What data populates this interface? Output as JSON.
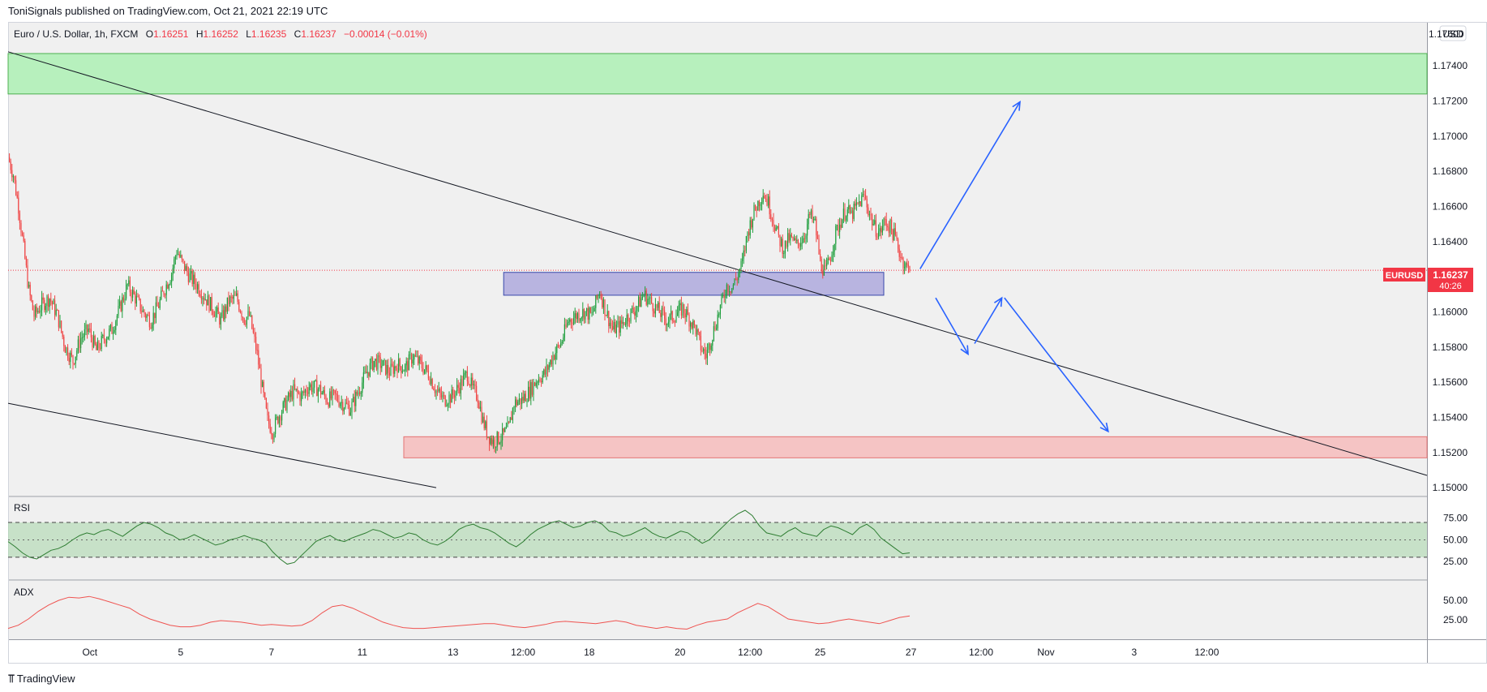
{
  "header": {
    "published": "ToniSignals published on TradingView.com, Oct 21, 2021 22:19 UTC"
  },
  "legend": {
    "symbol": "Euro / U.S. Dollar, 1h, FXCM",
    "open_label": "O",
    "open": "1.16251",
    "high_label": "H",
    "high": "1.16252",
    "low_label": "L",
    "low": "1.16235",
    "close_label": "C",
    "close": "1.16237",
    "change": "−0.00014 (−0.01%)"
  },
  "price_axis": {
    "currency": "USD",
    "ticks": [
      "1.17400",
      "1.17200",
      "1.17000",
      "1.16800",
      "1.16600",
      "1.16400",
      "1.16000",
      "1.15800",
      "1.15600",
      "1.15400",
      "1.15200",
      "1.15000"
    ],
    "top_clipped": "1.17600"
  },
  "price_badge": {
    "symbol": "EURUSD",
    "price": "1.16237",
    "countdown": "40:26"
  },
  "time_axis": {
    "ticks": [
      "Oct",
      "5",
      "7",
      "11",
      "13",
      "12:00",
      "18",
      "20",
      "12:00",
      "25",
      "27",
      "12:00",
      "Nov",
      "3",
      "12:00"
    ]
  },
  "rsi": {
    "label": "RSI",
    "ticks": [
      "75.00",
      "50.00",
      "25.00"
    ]
  },
  "adx": {
    "label": "ADX",
    "ticks": [
      "50.00",
      "25.00"
    ]
  },
  "footer": {
    "brand": "TradingView"
  },
  "colors": {
    "up": "#26a69a",
    "candle_up": "#1e9e3c",
    "candle_down": "#ef4444",
    "supply_zone": "#b7f0bd",
    "demand_zone": "#f5c4c4",
    "pivot_zone": "#b8b4e0",
    "arrow": "#2962ff",
    "badge": "#f23645"
  },
  "chart_data": [
    {
      "type": "candlestick",
      "title": "Euro / U.S. Dollar, 1h, FXCM",
      "ylim": [
        1.1495,
        1.1765
      ],
      "last_price": 1.16237,
      "price_path": [
        [
          0,
          1.1688
        ],
        [
          4,
          1.1678
        ],
        [
          8,
          1.166
        ],
        [
          12,
          1.1636
        ],
        [
          16,
          1.1612
        ],
        [
          20,
          1.1598
        ],
        [
          26,
          1.1604
        ],
        [
          32,
          1.1608
        ],
        [
          38,
          1.1598
        ],
        [
          44,
          1.158
        ],
        [
          50,
          1.1572
        ],
        [
          56,
          1.1585
        ],
        [
          62,
          1.159
        ],
        [
          68,
          1.1578
        ],
        [
          74,
          1.1585
        ],
        [
          80,
          1.159
        ],
        [
          86,
          1.1602
        ],
        [
          92,
          1.1615
        ],
        [
          98,
          1.1608
        ],
        [
          104,
          1.16
        ],
        [
          110,
          1.1595
        ],
        [
          116,
          1.1604
        ],
        [
          120,
          1.1612
        ],
        [
          126,
          1.1622
        ],
        [
          130,
          1.1635
        ],
        [
          134,
          1.1628
        ],
        [
          140,
          1.162
        ],
        [
          146,
          1.1615
        ],
        [
          152,
          1.1608
        ],
        [
          158,
          1.1602
        ],
        [
          164,
          1.1595
        ],
        [
          170,
          1.1606
        ],
        [
          176,
          1.1608
        ],
        [
          182,
          1.1596
        ],
        [
          186,
          1.1598
        ],
        [
          192,
          1.1576
        ],
        [
          196,
          1.1556
        ],
        [
          200,
          1.1538
        ],
        [
          204,
          1.1532
        ],
        [
          208,
          1.154
        ],
        [
          214,
          1.1548
        ],
        [
          220,
          1.1555
        ],
        [
          226,
          1.1552
        ],
        [
          232,
          1.1558
        ],
        [
          240,
          1.1556
        ],
        [
          246,
          1.155
        ],
        [
          252,
          1.1552
        ],
        [
          258,
          1.1548
        ],
        [
          264,
          1.1545
        ],
        [
          270,
          1.1555
        ],
        [
          276,
          1.1565
        ],
        [
          282,
          1.1572
        ],
        [
          288,
          1.157
        ],
        [
          294,
          1.1566
        ],
        [
          300,
          1.157
        ],
        [
          306,
          1.1568
        ],
        [
          312,
          1.1575
        ],
        [
          318,
          1.157
        ],
        [
          324,
          1.1565
        ],
        [
          330,
          1.1555
        ],
        [
          336,
          1.155
        ],
        [
          342,
          1.1552
        ],
        [
          348,
          1.1558
        ],
        [
          354,
          1.1565
        ],
        [
          358,
          1.1556
        ],
        [
          362,
          1.1552
        ],
        [
          366,
          1.1538
        ],
        [
          370,
          1.153
        ],
        [
          374,
          1.1526
        ],
        [
          378,
          1.1528
        ],
        [
          382,
          1.153
        ],
        [
          386,
          1.1534
        ],
        [
          390,
          1.1548
        ],
        [
          396,
          1.155
        ],
        [
          402,
          1.1555
        ],
        [
          408,
          1.1562
        ],
        [
          414,
          1.1565
        ],
        [
          420,
          1.1575
        ],
        [
          426,
          1.1582
        ],
        [
          432,
          1.1595
        ],
        [
          438,
          1.1598
        ],
        [
          444,
          1.16
        ],
        [
          450,
          1.1598
        ],
        [
          456,
          1.1612
        ],
        [
          460,
          1.1602
        ],
        [
          466,
          1.159
        ],
        [
          472,
          1.1592
        ],
        [
          478,
          1.1598
        ],
        [
          484,
          1.1602
        ],
        [
          490,
          1.161
        ],
        [
          496,
          1.1605
        ],
        [
          502,
          1.16
        ],
        [
          508,
          1.1595
        ],
        [
          514,
          1.1598
        ],
        [
          520,
          1.1602
        ],
        [
          526,
          1.1595
        ],
        [
          530,
          1.159
        ],
        [
          534,
          1.158
        ],
        [
          538,
          1.1575
        ],
        [
          542,
          1.1585
        ],
        [
          546,
          1.1595
        ],
        [
          550,
          1.1605
        ],
        [
          554,
          1.1615
        ],
        [
          558,
          1.1614
        ],
        [
          562,
          1.162
        ],
        [
          566,
          1.1628
        ],
        [
          570,
          1.1645
        ],
        [
          574,
          1.1655
        ],
        [
          578,
          1.1662
        ],
        [
          582,
          1.1668
        ],
        [
          586,
          1.1662
        ],
        [
          590,
          1.1652
        ],
        [
          594,
          1.1642
        ],
        [
          598,
          1.1636
        ],
        [
          602,
          1.1642
        ],
        [
          608,
          1.1638
        ],
        [
          614,
          1.1644
        ],
        [
          618,
          1.1655
        ],
        [
          622,
          1.165
        ],
        [
          626,
          1.1628
        ],
        [
          630,
          1.1622
        ],
        [
          634,
          1.1632
        ],
        [
          638,
          1.1645
        ],
        [
          642,
          1.1652
        ],
        [
          646,
          1.1658
        ],
        [
          650,
          1.1655
        ],
        [
          656,
          1.1662
        ],
        [
          660,
          1.1666
        ],
        [
          664,
          1.1656
        ],
        [
          668,
          1.1648
        ],
        [
          672,
          1.1645
        ],
        [
          676,
          1.1652
        ],
        [
          680,
          1.1648
        ],
        [
          684,
          1.1642
        ],
        [
          688,
          1.1632
        ],
        [
          692,
          1.1626
        ],
        [
          695,
          1.16237
        ]
      ],
      "zones": [
        {
          "kind": "supply",
          "price_top": 1.1747,
          "price_bottom": 1.1724
        },
        {
          "kind": "pivot",
          "price_top": 1.16225,
          "price_bottom": 1.16095
        },
        {
          "kind": "demand",
          "price_top": 1.1529,
          "price_bottom": 1.1517
        }
      ],
      "trendlines": [
        {
          "from": [
            0,
            1.1748
          ],
          "to": [
            695,
            1.1507
          ]
        },
        {
          "from": [
            0,
            1.1548
          ],
          "to": [
            330,
            1.15
          ]
        }
      ]
    },
    {
      "type": "line",
      "title": "RSI",
      "ylim": [
        0,
        100
      ],
      "bands": [
        30,
        50,
        70
      ],
      "values": [
        48,
        42,
        35,
        30,
        28,
        33,
        38,
        40,
        44,
        50,
        55,
        58,
        56,
        60,
        62,
        58,
        54,
        60,
        66,
        70,
        68,
        64,
        58,
        55,
        50,
        52,
        56,
        52,
        48,
        44,
        46,
        50,
        52,
        55,
        52,
        50,
        46,
        36,
        28,
        22,
        24,
        32,
        40,
        48,
        52,
        55,
        50,
        48,
        52,
        55,
        58,
        62,
        60,
        56,
        52,
        54,
        58,
        56,
        50,
        46,
        44,
        48,
        54,
        62,
        66,
        68,
        64,
        62,
        58,
        52,
        46,
        42,
        48,
        56,
        62,
        66,
        70,
        72,
        68,
        64,
        66,
        70,
        72,
        68,
        60,
        58,
        54,
        56,
        60,
        64,
        58,
        54,
        52,
        56,
        60,
        58,
        52,
        46,
        50,
        58,
        66,
        74,
        80,
        84,
        78,
        66,
        58,
        56,
        54,
        60,
        64,
        58,
        56,
        54,
        62,
        66,
        64,
        60,
        56,
        64,
        68,
        62,
        52,
        46,
        40,
        34,
        35
      ]
    },
    {
      "type": "line",
      "title": "ADX",
      "ylim": [
        0,
        75
      ],
      "values": [
        14,
        18,
        26,
        36,
        44,
        50,
        54,
        53,
        55,
        52,
        48,
        44,
        40,
        32,
        26,
        22,
        18,
        16,
        16,
        18,
        22,
        24,
        23,
        22,
        20,
        18,
        19,
        18,
        17,
        18,
        24,
        34,
        42,
        44,
        40,
        34,
        28,
        22,
        18,
        15,
        14,
        14,
        15,
        16,
        17,
        18,
        19,
        20,
        20,
        18,
        16,
        15,
        17,
        19,
        22,
        23,
        22,
        21,
        20,
        22,
        24,
        22,
        18,
        16,
        14,
        16,
        14,
        13,
        18,
        22,
        24,
        26,
        34,
        40,
        46,
        42,
        34,
        26,
        24,
        22,
        20,
        21,
        24,
        26,
        24,
        22,
        20,
        24,
        28,
        30
      ]
    }
  ]
}
